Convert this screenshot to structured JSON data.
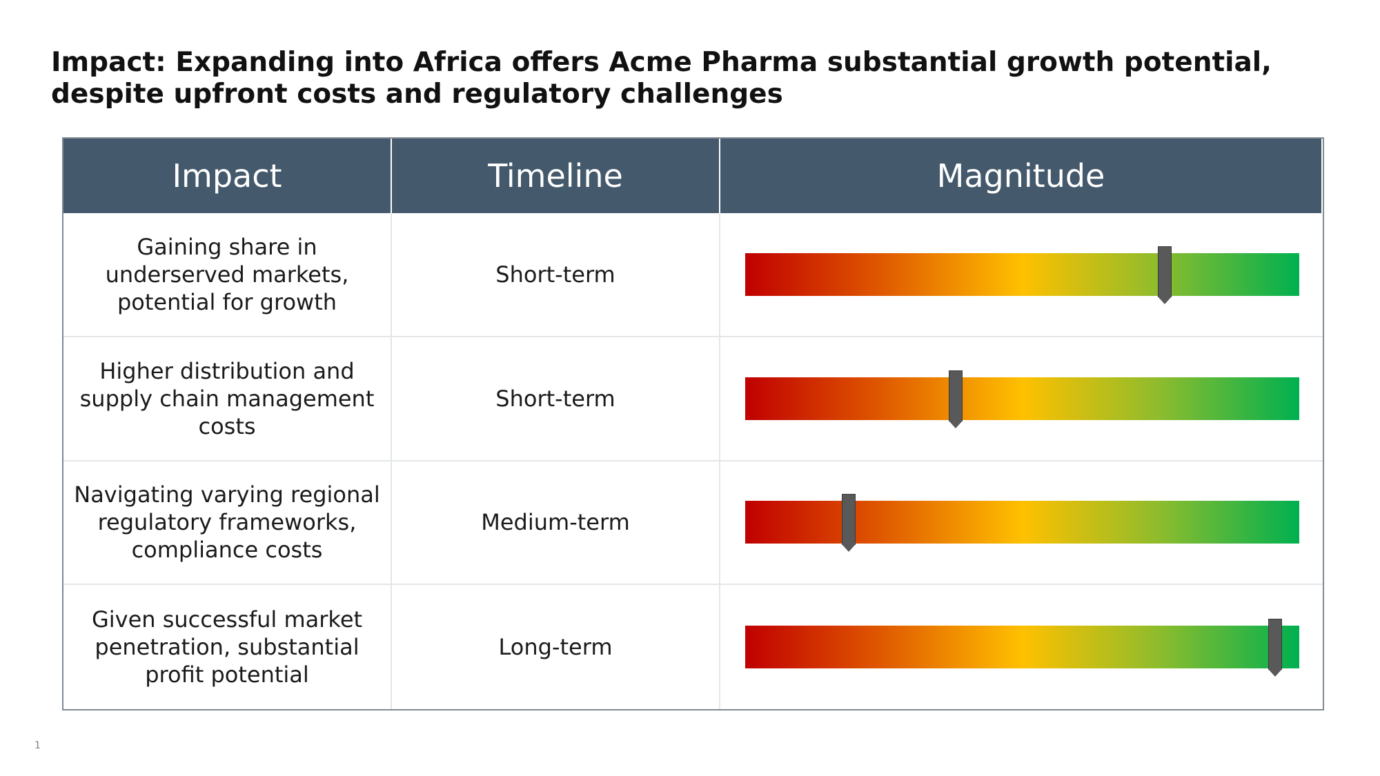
{
  "slide": {
    "title": "Impact: Expanding into Africa offers Acme Pharma substantial growth potential, despite upfront costs and regulatory challenges",
    "page_number": "1"
  },
  "table": {
    "headers": {
      "impact": "Impact",
      "timeline": "Timeline",
      "magnitude": "Magnitude"
    },
    "rows": [
      {
        "impact": "Gaining share in underserved markets, potential for growth",
        "timeline": "Short-term",
        "magnitude": 0.757
      },
      {
        "impact": "Higher distribution and supply chain management costs",
        "timeline": "Short-term",
        "magnitude": 0.38
      },
      {
        "impact": "Navigating varying regional regulatory frameworks, compliance costs",
        "timeline": "Medium-term",
        "magnitude": 0.187
      },
      {
        "impact": "Given successful market penetration, substantial profit potential",
        "timeline": "Long-term",
        "magnitude": 0.957
      }
    ]
  },
  "colors": {
    "header_background": "#44596b",
    "gauge_low": "#c00000",
    "gauge_mid": "#ffc000",
    "gauge_high": "#00b050",
    "marker": "#595959"
  }
}
